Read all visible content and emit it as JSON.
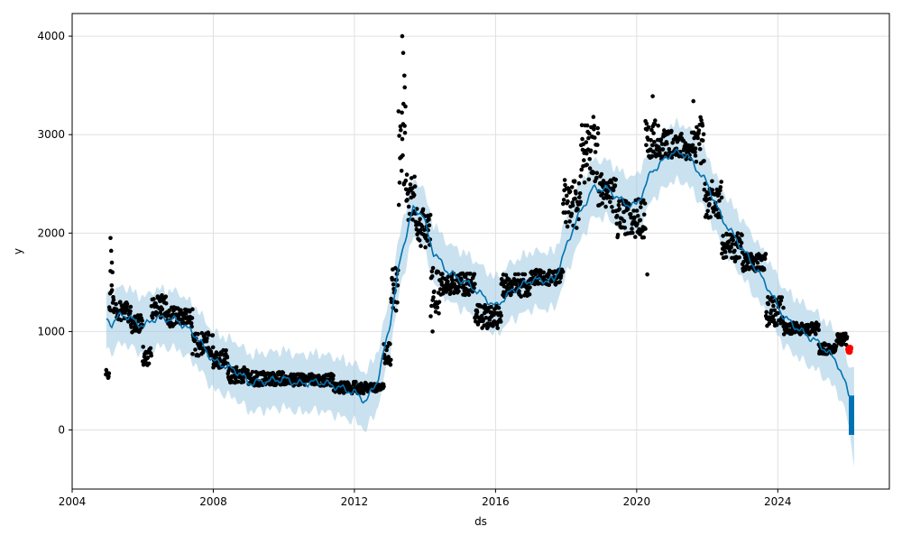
{
  "chart_data": {
    "type": "scatter",
    "xlabel": "ds",
    "ylabel": "y",
    "xlim": [
      "2004-01-01",
      "2027-03-01"
    ],
    "ylim": [
      -600,
      4230
    ],
    "x_ticks": [
      "2004",
      "2008",
      "2012",
      "2016",
      "2020",
      "2024"
    ],
    "y_ticks": [
      "0",
      "1000",
      "2000",
      "3000",
      "4000"
    ],
    "grid": true,
    "colors": {
      "observed": "#000000",
      "forecast_line": "#0072B2",
      "uncertainty_band": "#9ecae1",
      "highlight_point": "#ff0000"
    },
    "trend_knots": [
      [
        "2004-12-20",
        1120
      ],
      [
        "2005-02-15",
        1080
      ],
      [
        "2005-06-01",
        1180
      ],
      [
        "2005-10-01",
        1110
      ],
      [
        "2006-01-15",
        1050
      ],
      [
        "2006-04-01",
        1120
      ],
      [
        "2006-07-01",
        1140
      ],
      [
        "2007-01-01",
        1110
      ],
      [
        "2007-07-01",
        960
      ],
      [
        "2008-01-01",
        700
      ],
      [
        "2008-06-01",
        640
      ],
      [
        "2008-10-01",
        580
      ],
      [
        "2009-01-01",
        480
      ],
      [
        "2009-06-01",
        490
      ],
      [
        "2010-01-01",
        520
      ],
      [
        "2010-06-01",
        470
      ],
      [
        "2011-01-01",
        490
      ],
      [
        "2011-06-01",
        450
      ],
      [
        "2012-01-01",
        380
      ],
      [
        "2012-05-01",
        290
      ],
      [
        "2012-09-01",
        520
      ],
      [
        "2013-01-01",
        1070
      ],
      [
        "2013-05-01",
        1800
      ],
      [
        "2013-09-01",
        2250
      ],
      [
        "2013-12-01",
        2200
      ],
      [
        "2014-04-01",
        1800
      ],
      [
        "2014-09-01",
        1600
      ],
      [
        "2015-04-01",
        1480
      ],
      [
        "2016-01-01",
        1250
      ],
      [
        "2016-06-01",
        1400
      ],
      [
        "2017-01-01",
        1520
      ],
      [
        "2017-09-01",
        1520
      ],
      [
        "2018-04-01",
        2100
      ],
      [
        "2018-10-01",
        2450
      ],
      [
        "2019-03-01",
        2450
      ],
      [
        "2019-09-01",
        2300
      ],
      [
        "2020-01-01",
        2280
      ],
      [
        "2020-06-01",
        2620
      ],
      [
        "2021-01-01",
        2820
      ],
      [
        "2021-06-01",
        2800
      ],
      [
        "2022-01-01",
        2500
      ],
      [
        "2022-06-01",
        2150
      ],
      [
        "2023-01-01",
        1840
      ],
      [
        "2023-09-01",
        1480
      ],
      [
        "2024-03-01",
        1150
      ],
      [
        "2024-09-01",
        1000
      ],
      [
        "2025-03-01",
        880
      ],
      [
        "2025-09-01",
        700
      ],
      [
        "2026-01-01",
        380
      ],
      [
        "2026-03-01",
        200
      ]
    ],
    "band_halfwidth": 290,
    "forecast_segment": {
      "x": [
        "2026-01-05",
        "2026-03-01"
      ],
      "yhat_range": [
        -50,
        350
      ],
      "band": [
        -380,
        640
      ]
    },
    "observed_clusters": [
      {
        "from": "2004-12-15",
        "to": "2005-01-20",
        "center": 560,
        "spread": 60
      },
      {
        "from": "2005-01-20",
        "to": "2005-03-10",
        "center": 1400,
        "spread": 250
      },
      {
        "from": "2005-03-10",
        "to": "2005-09-01",
        "center": 1200,
        "spread": 100
      },
      {
        "from": "2005-09-01",
        "to": "2006-01-01",
        "center": 1080,
        "spread": 90
      },
      {
        "from": "2006-01-01",
        "to": "2006-04-01",
        "center": 750,
        "spread": 100
      },
      {
        "from": "2006-04-01",
        "to": "2006-09-01",
        "center": 1250,
        "spread": 120
      },
      {
        "from": "2006-09-01",
        "to": "2007-06-01",
        "center": 1150,
        "spread": 100
      },
      {
        "from": "2007-06-01",
        "to": "2008-01-01",
        "center": 870,
        "spread": 120
      },
      {
        "from": "2008-01-01",
        "to": "2008-06-01",
        "center": 720,
        "spread": 90
      },
      {
        "from": "2008-06-01",
        "to": "2009-01-01",
        "center": 560,
        "spread": 80
      },
      {
        "from": "2009-01-01",
        "to": "2010-01-01",
        "center": 520,
        "spread": 70
      },
      {
        "from": "2010-01-01",
        "to": "2011-06-01",
        "center": 510,
        "spread": 60
      },
      {
        "from": "2011-06-01",
        "to": "2012-06-01",
        "center": 430,
        "spread": 60
      },
      {
        "from": "2012-06-01",
        "to": "2012-11-01",
        "center": 430,
        "spread": 40
      },
      {
        "from": "2012-11-01",
        "to": "2013-01-15",
        "center": 780,
        "spread": 120
      },
      {
        "from": "2013-01-15",
        "to": "2013-04-01",
        "center": 1400,
        "spread": 250
      },
      {
        "from": "2013-04-01",
        "to": "2013-06-15",
        "center": 2800,
        "spread": 550
      },
      {
        "from": "2013-06-15",
        "to": "2013-10-01",
        "center": 2350,
        "spread": 250
      },
      {
        "from": "2013-10-01",
        "to": "2014-03-01",
        "center": 2050,
        "spread": 200
      },
      {
        "from": "2014-03-01",
        "to": "2014-06-01",
        "center": 1400,
        "spread": 250
      },
      {
        "from": "2014-06-01",
        "to": "2015-06-01",
        "center": 1480,
        "spread": 110
      },
      {
        "from": "2015-06-01",
        "to": "2016-03-01",
        "center": 1150,
        "spread": 120
      },
      {
        "from": "2016-03-01",
        "to": "2017-01-01",
        "center": 1470,
        "spread": 120
      },
      {
        "from": "2017-01-01",
        "to": "2017-12-01",
        "center": 1550,
        "spread": 80
      },
      {
        "from": "2017-12-01",
        "to": "2018-06-01",
        "center": 2300,
        "spread": 250
      },
      {
        "from": "2018-06-01",
        "to": "2018-12-01",
        "center": 2800,
        "spread": 300
      },
      {
        "from": "2018-12-01",
        "to": "2019-06-01",
        "center": 2400,
        "spread": 200
      },
      {
        "from": "2019-06-01",
        "to": "2020-04-01",
        "center": 2150,
        "spread": 200
      },
      {
        "from": "2020-04-01",
        "to": "2020-09-01",
        "center": 2950,
        "spread": 200
      },
      {
        "from": "2020-09-01",
        "to": "2021-09-01",
        "center": 2900,
        "spread": 150
      },
      {
        "from": "2021-09-01",
        "to": "2021-12-01",
        "center": 2950,
        "spread": 250
      },
      {
        "from": "2021-12-01",
        "to": "2022-06-01",
        "center": 2350,
        "spread": 200
      },
      {
        "from": "2022-06-01",
        "to": "2023-01-01",
        "center": 1850,
        "spread": 150
      },
      {
        "from": "2023-01-01",
        "to": "2023-09-01",
        "center": 1700,
        "spread": 90
      },
      {
        "from": "2023-09-01",
        "to": "2024-03-01",
        "center": 1200,
        "spread": 150
      },
      {
        "from": "2024-03-01",
        "to": "2025-03-01",
        "center": 1030,
        "spread": 60
      },
      {
        "from": "2025-03-01",
        "to": "2025-09-01",
        "center": 830,
        "spread": 60
      },
      {
        "from": "2025-09-01",
        "to": "2025-12-20",
        "center": 920,
        "spread": 60
      }
    ],
    "observed_outliers": [
      [
        "2005-02-01",
        1950
      ],
      [
        "2005-02-08",
        1820
      ],
      [
        "2005-02-15",
        1700
      ],
      [
        "2013-05-10",
        4000
      ],
      [
        "2013-05-20",
        3830
      ],
      [
        "2013-06-01",
        3600
      ],
      [
        "2013-06-05",
        3480
      ],
      [
        "2018-10-10",
        3180
      ],
      [
        "2020-06-15",
        3390
      ],
      [
        "2020-04-20",
        1580
      ],
      [
        "2021-08-10",
        3340
      ],
      [
        "2014-03-20",
        1000
      ]
    ],
    "highlight_points": [
      [
        "2026-01-05",
        820
      ],
      [
        "2026-01-10",
        800
      ],
      [
        "2026-01-15",
        830
      ]
    ]
  }
}
